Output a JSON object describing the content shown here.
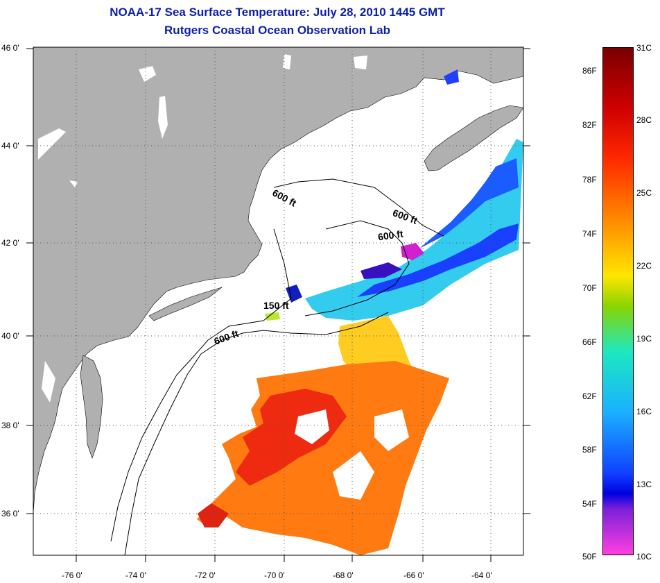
{
  "title": {
    "line1": "NOAA-17 Sea Surface Temperature:  July 28, 2010 1445 GMT",
    "line2": "Rutgers Coastal Ocean Observation Lab"
  },
  "map": {
    "latitude_labels": [
      "46 0'",
      "44 0'",
      "42 0'",
      "40 0'",
      "38 0'",
      "36 0'"
    ],
    "longitude_labels": [
      "-76 0'",
      "-74 0'",
      "-72 0'",
      "-70 0'",
      "-68 0'",
      "-66 0'",
      "-64 0'"
    ],
    "contour_labels": [
      "600 ft",
      "600 ft",
      "600 ft",
      "150 ft",
      "600 ft"
    ],
    "land_color": "#b0b0b0",
    "water_color": "#ffffff"
  },
  "colorbar": {
    "celsius": [
      "31C",
      "28C",
      "25C",
      "22C",
      "19C",
      "16C",
      "13C",
      "10C"
    ],
    "fahrenheit": [
      "86F",
      "82F",
      "78F",
      "74F",
      "70F",
      "66F",
      "62F",
      "58F",
      "54F",
      "50F"
    ]
  }
}
